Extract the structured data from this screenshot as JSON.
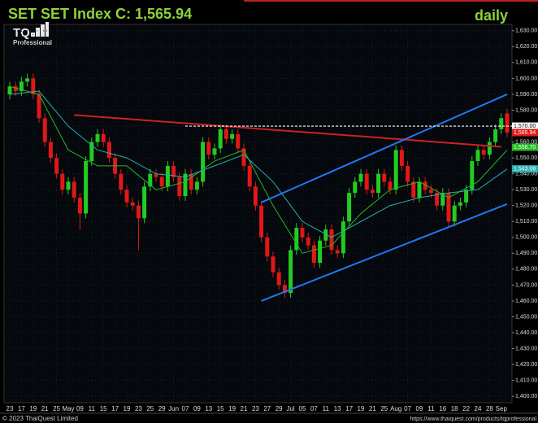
{
  "chart_data": {
    "type": "candlestick",
    "title": "SET  SET Index C: 1,565.94",
    "period": "daily",
    "logo": {
      "text": "TQ",
      "subtitle": "Professional"
    },
    "footer_left": "© 2023 ThaiQuest Limited",
    "footer_right": "https://www.thaiquest.com/products/tqprofessional",
    "categories": [
      "23",
      null,
      "17",
      null,
      "19",
      null,
      "21",
      null,
      "25",
      null,
      "May",
      null,
      "09",
      null,
      "11",
      null,
      "15",
      null,
      "17",
      null,
      "19",
      null,
      "23",
      null,
      "25",
      null,
      "29",
      null,
      "Jun",
      null,
      "07",
      null,
      "09",
      null,
      "13",
      null,
      "15",
      null,
      "19",
      null,
      "21",
      null,
      "23",
      null,
      "27",
      null,
      "29",
      null,
      "Jul",
      null,
      "05",
      null,
      "07",
      null,
      "11",
      null,
      "13",
      null,
      "17",
      null,
      "19",
      null,
      "21",
      null,
      "25",
      null,
      "Aug",
      null,
      "07",
      null,
      "09",
      null,
      "11",
      null,
      "16",
      null,
      "18",
      null,
      "22",
      null,
      "24",
      null,
      "28",
      null,
      "Sep",
      null
    ],
    "open": [
      1590,
      1595,
      1592,
      1598,
      1600,
      1590,
      1575,
      1560,
      1550,
      1540,
      1530,
      1535,
      1525,
      1515,
      1548,
      1560,
      1565,
      1560,
      1550,
      1540,
      1530,
      1522,
      1520,
      1512,
      1532,
      1540,
      1538,
      1532,
      1545,
      1538,
      1526,
      1540,
      1530,
      1535,
      1560,
      1552,
      1556,
      1568,
      1562,
      1565,
      1556,
      1545,
      1532,
      1520,
      1500,
      1488,
      1478,
      1470,
      1465,
      1492,
      1506,
      1500,
      1495,
      1484,
      1498,
      1505,
      1492,
      1490,
      1510,
      1528,
      1535,
      1540,
      1530,
      1528,
      1540,
      1535,
      1530,
      1555,
      1545,
      1535,
      1525,
      1535,
      1530,
      1528,
      1520,
      1528,
      1510,
      1520,
      1522,
      1530,
      1548,
      1555,
      1552,
      1560,
      1568,
      1578
    ],
    "high": [
      1598,
      1598,
      1601,
      1603,
      1603,
      1593,
      1578,
      1563,
      1553,
      1543,
      1538,
      1538,
      1528,
      1551,
      1563,
      1568,
      1568,
      1563,
      1553,
      1543,
      1533,
      1525,
      1523,
      1535,
      1543,
      1543,
      1541,
      1548,
      1548,
      1541,
      1543,
      1543,
      1538,
      1563,
      1563,
      1559,
      1571,
      1571,
      1568,
      1568,
      1559,
      1548,
      1535,
      1523,
      1503,
      1491,
      1481,
      1473,
      1495,
      1509,
      1509,
      1503,
      1498,
      1501,
      1508,
      1508,
      1495,
      1513,
      1531,
      1538,
      1543,
      1543,
      1533,
      1543,
      1543,
      1538,
      1558,
      1558,
      1548,
      1538,
      1538,
      1538,
      1533,
      1531,
      1531,
      1531,
      1523,
      1525,
      1533,
      1551,
      1558,
      1558,
      1563,
      1571,
      1578,
      1581
    ],
    "low": [
      1587,
      1589,
      1589,
      1595,
      1587,
      1572,
      1557,
      1547,
      1537,
      1527,
      1527,
      1522,
      1505,
      1512,
      1545,
      1557,
      1557,
      1547,
      1537,
      1527,
      1519,
      1517,
      1492,
      1509,
      1529,
      1535,
      1529,
      1529,
      1535,
      1523,
      1523,
      1527,
      1527,
      1532,
      1549,
      1549,
      1553,
      1559,
      1559,
      1553,
      1542,
      1529,
      1517,
      1497,
      1485,
      1475,
      1467,
      1462,
      1462,
      1489,
      1497,
      1492,
      1481,
      1481,
      1495,
      1489,
      1487,
      1487,
      1507,
      1525,
      1532,
      1527,
      1525,
      1525,
      1532,
      1527,
      1527,
      1542,
      1532,
      1522,
      1522,
      1527,
      1525,
      1517,
      1517,
      1507,
      1507,
      1517,
      1519,
      1527,
      1545,
      1549,
      1549,
      1557,
      1565,
      1563
    ],
    "close": [
      1595,
      1592,
      1598,
      1600,
      1590,
      1575,
      1560,
      1550,
      1540,
      1530,
      1535,
      1525,
      1515,
      1548,
      1560,
      1565,
      1560,
      1550,
      1540,
      1530,
      1522,
      1520,
      1512,
      1532,
      1540,
      1538,
      1532,
      1545,
      1538,
      1526,
      1540,
      1530,
      1535,
      1560,
      1552,
      1556,
      1568,
      1562,
      1565,
      1556,
      1545,
      1532,
      1520,
      1500,
      1488,
      1478,
      1470,
      1465,
      1492,
      1506,
      1500,
      1495,
      1484,
      1498,
      1505,
      1492,
      1490,
      1510,
      1528,
      1535,
      1540,
      1530,
      1528,
      1540,
      1535,
      1530,
      1555,
      1545,
      1535,
      1525,
      1535,
      1530,
      1528,
      1520,
      1528,
      1510,
      1520,
      1522,
      1530,
      1548,
      1555,
      1552,
      1560,
      1568,
      1575,
      1565.94
    ],
    "up_color": "#22cc22",
    "down_color": "#e01818",
    "ylim": [
      1396,
      1634
    ],
    "yticks": [
      {
        "value": 1400,
        "label": "1,400.00"
      },
      {
        "value": 1410,
        "label": "1,410.00"
      },
      {
        "value": 1420,
        "label": "1,420.00"
      },
      {
        "value": 1430,
        "label": "1,430.00"
      },
      {
        "value": 1440,
        "label": "1,440.00"
      },
      {
        "value": 1450,
        "label": "1,450.00"
      },
      {
        "value": 1460,
        "label": "1,460.00"
      },
      {
        "value": 1470,
        "label": "1,470.00"
      },
      {
        "value": 1480,
        "label": "1,480.00"
      },
      {
        "value": 1490,
        "label": "1,490.00"
      },
      {
        "value": 1500,
        "label": "1,500.00"
      },
      {
        "value": 1510,
        "label": "1,510.00"
      },
      {
        "value": 1520,
        "label": "1,520.00"
      },
      {
        "value": 1530,
        "label": "1,530.00"
      },
      {
        "value": 1540,
        "label": "1,540.00"
      },
      {
        "value": 1550,
        "label": "1,550.00"
      },
      {
        "value": 1560,
        "label": "1,560.00"
      },
      {
        "value": 1570,
        "label": "1,570.00"
      },
      {
        "value": 1580,
        "label": "1,580.00"
      },
      {
        "value": 1590,
        "label": "1,590.00"
      },
      {
        "value": 1600,
        "label": "1,600.00"
      },
      {
        "value": 1610,
        "label": "1,610.00"
      },
      {
        "value": 1620,
        "label": "1,620.00"
      },
      {
        "value": 1630,
        "label": "1,630.00"
      }
    ],
    "grid": true,
    "moving_averages": [
      {
        "color": "#22bb22",
        "x": [
          0,
          5,
          10,
          15,
          20,
          25,
          30,
          35,
          40,
          45,
          50,
          55,
          60,
          65,
          70,
          75,
          80,
          85
        ],
        "values": [
          1595,
          1590,
          1555,
          1545,
          1545,
          1530,
          1535,
          1548,
          1555,
          1520,
          1490,
          1495,
          1515,
          1530,
          1535,
          1525,
          1535,
          1555
        ]
      },
      {
        "color": "#2ab0b0",
        "x": [
          0,
          5,
          10,
          15,
          20,
          25,
          30,
          35,
          40,
          45,
          50,
          55,
          60,
          65,
          70,
          75,
          80,
          85
        ],
        "values": [
          1590,
          1592,
          1570,
          1555,
          1550,
          1540,
          1538,
          1545,
          1552,
          1535,
          1510,
          1500,
          1510,
          1520,
          1525,
          1528,
          1530,
          1543
        ]
      }
    ],
    "trendlines": [
      {
        "color": "#cc2222",
        "dashed": false,
        "x": [
          11,
          84
        ],
        "values": [
          1577,
          1557
        ]
      },
      {
        "color": "#2277ee",
        "dashed": false,
        "x": [
          43,
          85
        ],
        "values": [
          1522,
          1590
        ]
      },
      {
        "color": "#2277ee",
        "dashed": false,
        "x": [
          43,
          85
        ],
        "values": [
          1460,
          1521
        ]
      },
      {
        "color": "#ffffff",
        "dashed": true,
        "x": [
          30,
          86
        ],
        "values": [
          1570,
          1570
        ]
      }
    ],
    "price_tags": [
      {
        "value": 1570,
        "label": "1,570.00",
        "color": "#ffffff",
        "text_color": "#000000"
      },
      {
        "value": 1565.94,
        "label": "1,565.94",
        "color": "#e01818",
        "text_color": "#ffffff"
      },
      {
        "value": 1556.7,
        "label": "1,556.70",
        "color": "#22bb22",
        "text_color": "#ffffff"
      },
      {
        "value": 1543.08,
        "label": "1,543.08",
        "color": "#2ab0b0",
        "text_color": "#ffffff"
      }
    ]
  }
}
